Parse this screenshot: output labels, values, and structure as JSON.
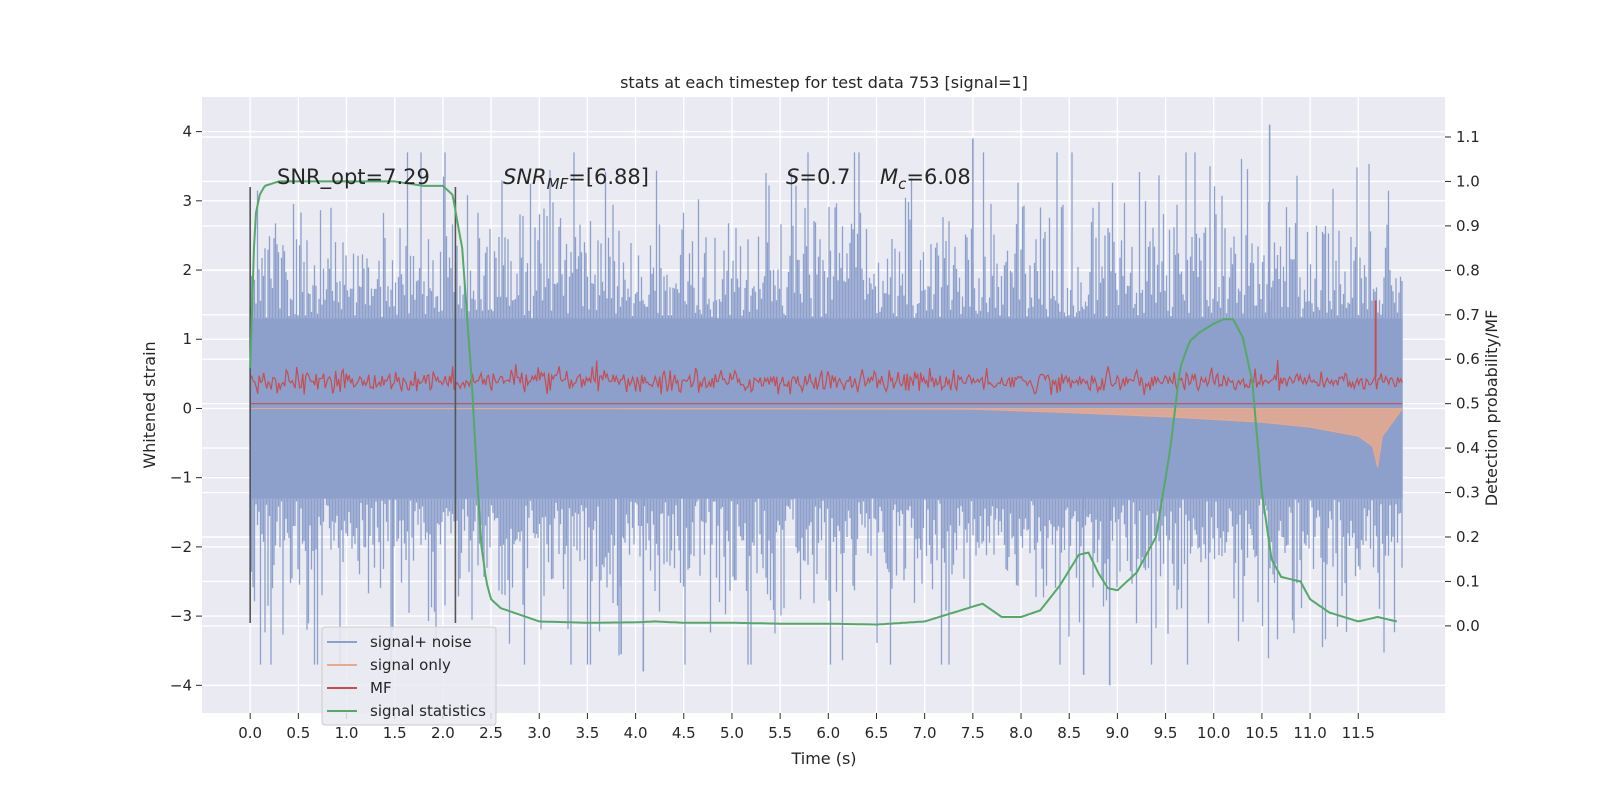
{
  "chart_data": {
    "type": "line",
    "title": "stats at each timestep for test data 753 [signal=1]",
    "xlabel": "Time (s)",
    "ylabel": "Whitened strain",
    "y2label": "Detection probability/MF",
    "xlim": [
      -0.5,
      12.4
    ],
    "ylim": [
      -4.4,
      4.5
    ],
    "y2lim": [
      -0.196,
      1.19
    ],
    "x_ticks": [
      "0.0",
      "0.5",
      "1.0",
      "1.5",
      "2.0",
      "2.5",
      "3.0",
      "3.5",
      "4.0",
      "4.5",
      "5.0",
      "5.5",
      "6.0",
      "6.5",
      "7.0",
      "7.5",
      "8.0",
      "8.5",
      "9.0",
      "9.5",
      "10.0",
      "10.5",
      "11.0",
      "11.5"
    ],
    "y_ticks": [
      "−4",
      "−3",
      "−2",
      "−1",
      "0",
      "1",
      "2",
      "3",
      "4"
    ],
    "y2_ticks": [
      "0.0",
      "0.1",
      "0.2",
      "0.3",
      "0.4",
      "0.5",
      "0.6",
      "0.7",
      "0.8",
      "0.9",
      "1.0",
      "1.1"
    ],
    "grid": true,
    "legend_position": "lower-left",
    "annotations": {
      "snr_opt": "SNR_opt=7.29",
      "snr_mf_main": "SNR",
      "snr_mf_sub": "MF",
      "snr_mf_rest": "=[6.88]",
      "s_main": "S",
      "s_rest": "=0.7",
      "mc_main": "M",
      "mc_sub": "c",
      "mc_rest": "=6.08"
    },
    "vertical_lines": [
      0.0,
      2.13
    ],
    "series": [
      {
        "name": "signal+ noise",
        "color": "#8da0cb",
        "x_range": [
          0.0,
          11.96
        ],
        "typical_range": [
          -1.3,
          1.3
        ],
        "spike_max": 4.1,
        "spike_min": -4.0
      },
      {
        "name": "signal only",
        "color": "#e9a98d",
        "x": [
          0.0,
          7.5,
          8.5,
          9.5,
          10.5,
          11.0,
          11.5,
          11.65,
          11.7,
          11.75,
          11.96
        ],
        "y": [
          0.0,
          -0.01,
          -0.06,
          -0.12,
          -0.2,
          -0.27,
          -0.4,
          -0.55,
          -0.85,
          -0.4,
          0.0
        ]
      },
      {
        "name": "MF",
        "color": "#c44e52",
        "x_range": [
          0.0,
          11.96
        ],
        "typical_range": [
          0.52,
          0.58
        ],
        "spike": {
          "x": 11.68,
          "y": 0.732
        }
      },
      {
        "name": "signal statistics",
        "color": "#55a868",
        "x": [
          0.0,
          0.05,
          0.1,
          0.15,
          0.3,
          0.5,
          1.0,
          1.5,
          1.8,
          2.0,
          2.1,
          2.2,
          2.3,
          2.35,
          2.4,
          2.45,
          2.5,
          2.6,
          2.8,
          3.0,
          3.5,
          4.0,
          4.2,
          4.5,
          5.0,
          5.5,
          6.0,
          6.5,
          7.0,
          7.3,
          7.6,
          7.8,
          8.0,
          8.2,
          8.4,
          8.6,
          8.7,
          8.8,
          8.9,
          9.0,
          9.2,
          9.4,
          9.55,
          9.65,
          9.75,
          9.85,
          10.0,
          10.1,
          10.2,
          10.3,
          10.4,
          10.5,
          10.6,
          10.7,
          10.9,
          11.0,
          11.2,
          11.5,
          11.7,
          11.9
        ],
        "y": [
          0.58,
          0.92,
          0.97,
          0.99,
          1.0,
          1.0,
          1.0,
          1.0,
          0.99,
          0.99,
          0.97,
          0.85,
          0.55,
          0.35,
          0.18,
          0.1,
          0.06,
          0.04,
          0.025,
          0.01,
          0.007,
          0.008,
          0.01,
          0.007,
          0.007,
          0.005,
          0.005,
          0.003,
          0.01,
          0.03,
          0.05,
          0.02,
          0.02,
          0.035,
          0.09,
          0.16,
          0.165,
          0.12,
          0.085,
          0.08,
          0.12,
          0.2,
          0.4,
          0.58,
          0.64,
          0.66,
          0.68,
          0.69,
          0.69,
          0.65,
          0.55,
          0.3,
          0.15,
          0.11,
          0.1,
          0.06,
          0.03,
          0.01,
          0.02,
          0.01
        ]
      }
    ]
  }
}
